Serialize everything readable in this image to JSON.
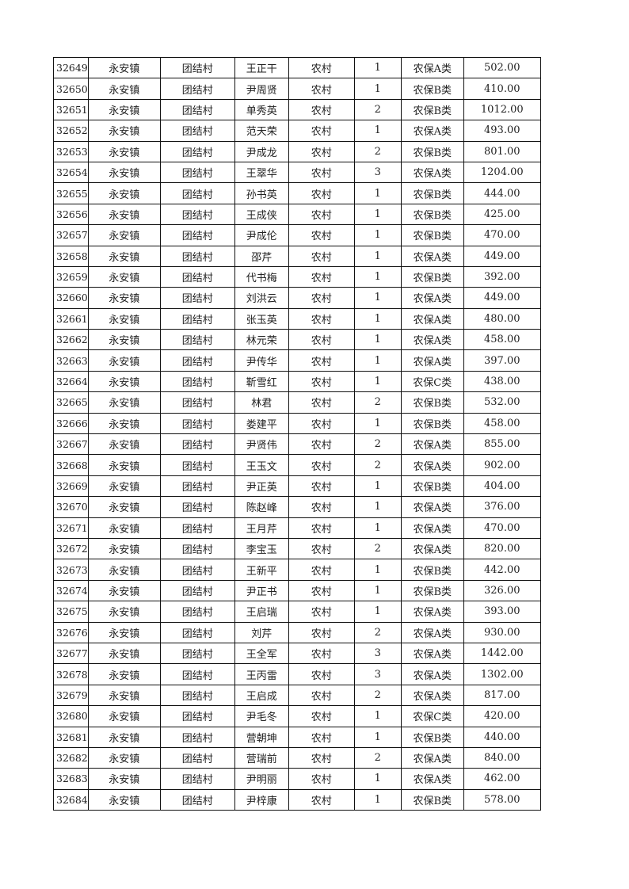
{
  "table": {
    "rows": [
      [
        "32649",
        "永安镇",
        "团结村",
        "王正干",
        "农村",
        "1",
        "农保A类",
        "502.00"
      ],
      [
        "32650",
        "永安镇",
        "团结村",
        "尹周贤",
        "农村",
        "1",
        "农保B类",
        "410.00"
      ],
      [
        "32651",
        "永安镇",
        "团结村",
        "单秀英",
        "农村",
        "2",
        "农保B类",
        "1012.00"
      ],
      [
        "32652",
        "永安镇",
        "团结村",
        "范天荣",
        "农村",
        "1",
        "农保A类",
        "493.00"
      ],
      [
        "32653",
        "永安镇",
        "团结村",
        "尹成龙",
        "农村",
        "2",
        "农保B类",
        "801.00"
      ],
      [
        "32654",
        "永安镇",
        "团结村",
        "王翠华",
        "农村",
        "3",
        "农保A类",
        "1204.00"
      ],
      [
        "32655",
        "永安镇",
        "团结村",
        "孙书英",
        "农村",
        "1",
        "农保B类",
        "444.00"
      ],
      [
        "32656",
        "永安镇",
        "团结村",
        "王成侠",
        "农村",
        "1",
        "农保B类",
        "425.00"
      ],
      [
        "32657",
        "永安镇",
        "团结村",
        "尹成伦",
        "农村",
        "1",
        "农保B类",
        "470.00"
      ],
      [
        "32658",
        "永安镇",
        "团结村",
        "邵芹",
        "农村",
        "1",
        "农保A类",
        "449.00"
      ],
      [
        "32659",
        "永安镇",
        "团结村",
        "代书梅",
        "农村",
        "1",
        "农保B类",
        "392.00"
      ],
      [
        "32660",
        "永安镇",
        "团结村",
        "刘洪云",
        "农村",
        "1",
        "农保A类",
        "449.00"
      ],
      [
        "32661",
        "永安镇",
        "团结村",
        "张玉英",
        "农村",
        "1",
        "农保A类",
        "480.00"
      ],
      [
        "32662",
        "永安镇",
        "团结村",
        "林元荣",
        "农村",
        "1",
        "农保A类",
        "458.00"
      ],
      [
        "32663",
        "永安镇",
        "团结村",
        "尹传华",
        "农村",
        "1",
        "农保A类",
        "397.00"
      ],
      [
        "32664",
        "永安镇",
        "团结村",
        "靳雪红",
        "农村",
        "1",
        "农保C类",
        "438.00"
      ],
      [
        "32665",
        "永安镇",
        "团结村",
        "林君",
        "农村",
        "2",
        "农保B类",
        "532.00"
      ],
      [
        "32666",
        "永安镇",
        "团结村",
        "娄建平",
        "农村",
        "1",
        "农保B类",
        "458.00"
      ],
      [
        "32667",
        "永安镇",
        "团结村",
        "尹贤伟",
        "农村",
        "2",
        "农保A类",
        "855.00"
      ],
      [
        "32668",
        "永安镇",
        "团结村",
        "王玉文",
        "农村",
        "2",
        "农保A类",
        "902.00"
      ],
      [
        "32669",
        "永安镇",
        "团结村",
        "尹正英",
        "农村",
        "1",
        "农保B类",
        "404.00"
      ],
      [
        "32670",
        "永安镇",
        "团结村",
        "陈赵峰",
        "农村",
        "1",
        "农保A类",
        "376.00"
      ],
      [
        "32671",
        "永安镇",
        "团结村",
        "王月芹",
        "农村",
        "1",
        "农保A类",
        "470.00"
      ],
      [
        "32672",
        "永安镇",
        "团结村",
        "李宝玉",
        "农村",
        "2",
        "农保A类",
        "820.00"
      ],
      [
        "32673",
        "永安镇",
        "团结村",
        "王新平",
        "农村",
        "1",
        "农保B类",
        "442.00"
      ],
      [
        "32674",
        "永安镇",
        "团结村",
        "尹正书",
        "农村",
        "1",
        "农保B类",
        "326.00"
      ],
      [
        "32675",
        "永安镇",
        "团结村",
        "王启瑞",
        "农村",
        "1",
        "农保A类",
        "393.00"
      ],
      [
        "32676",
        "永安镇",
        "团结村",
        "刘芹",
        "农村",
        "2",
        "农保A类",
        "930.00"
      ],
      [
        "32677",
        "永安镇",
        "团结村",
        "王全军",
        "农村",
        "3",
        "农保A类",
        "1442.00"
      ],
      [
        "32678",
        "永安镇",
        "团结村",
        "王丙雷",
        "农村",
        "3",
        "农保A类",
        "1302.00"
      ],
      [
        "32679",
        "永安镇",
        "团结村",
        "王启成",
        "农村",
        "2",
        "农保A类",
        "817.00"
      ],
      [
        "32680",
        "永安镇",
        "团结村",
        "尹毛冬",
        "农村",
        "1",
        "农保C类",
        "420.00"
      ],
      [
        "32681",
        "永安镇",
        "团结村",
        "营朝坤",
        "农村",
        "1",
        "农保B类",
        "440.00"
      ],
      [
        "32682",
        "永安镇",
        "团结村",
        "营瑞前",
        "农村",
        "2",
        "农保A类",
        "840.00"
      ],
      [
        "32683",
        "永安镇",
        "团结村",
        "尹明丽",
        "农村",
        "1",
        "农保A类",
        "462.00"
      ],
      [
        "32684",
        "永安镇",
        "团结村",
        "尹梓康",
        "农村",
        "1",
        "农保B类",
        "578.00"
      ]
    ]
  }
}
